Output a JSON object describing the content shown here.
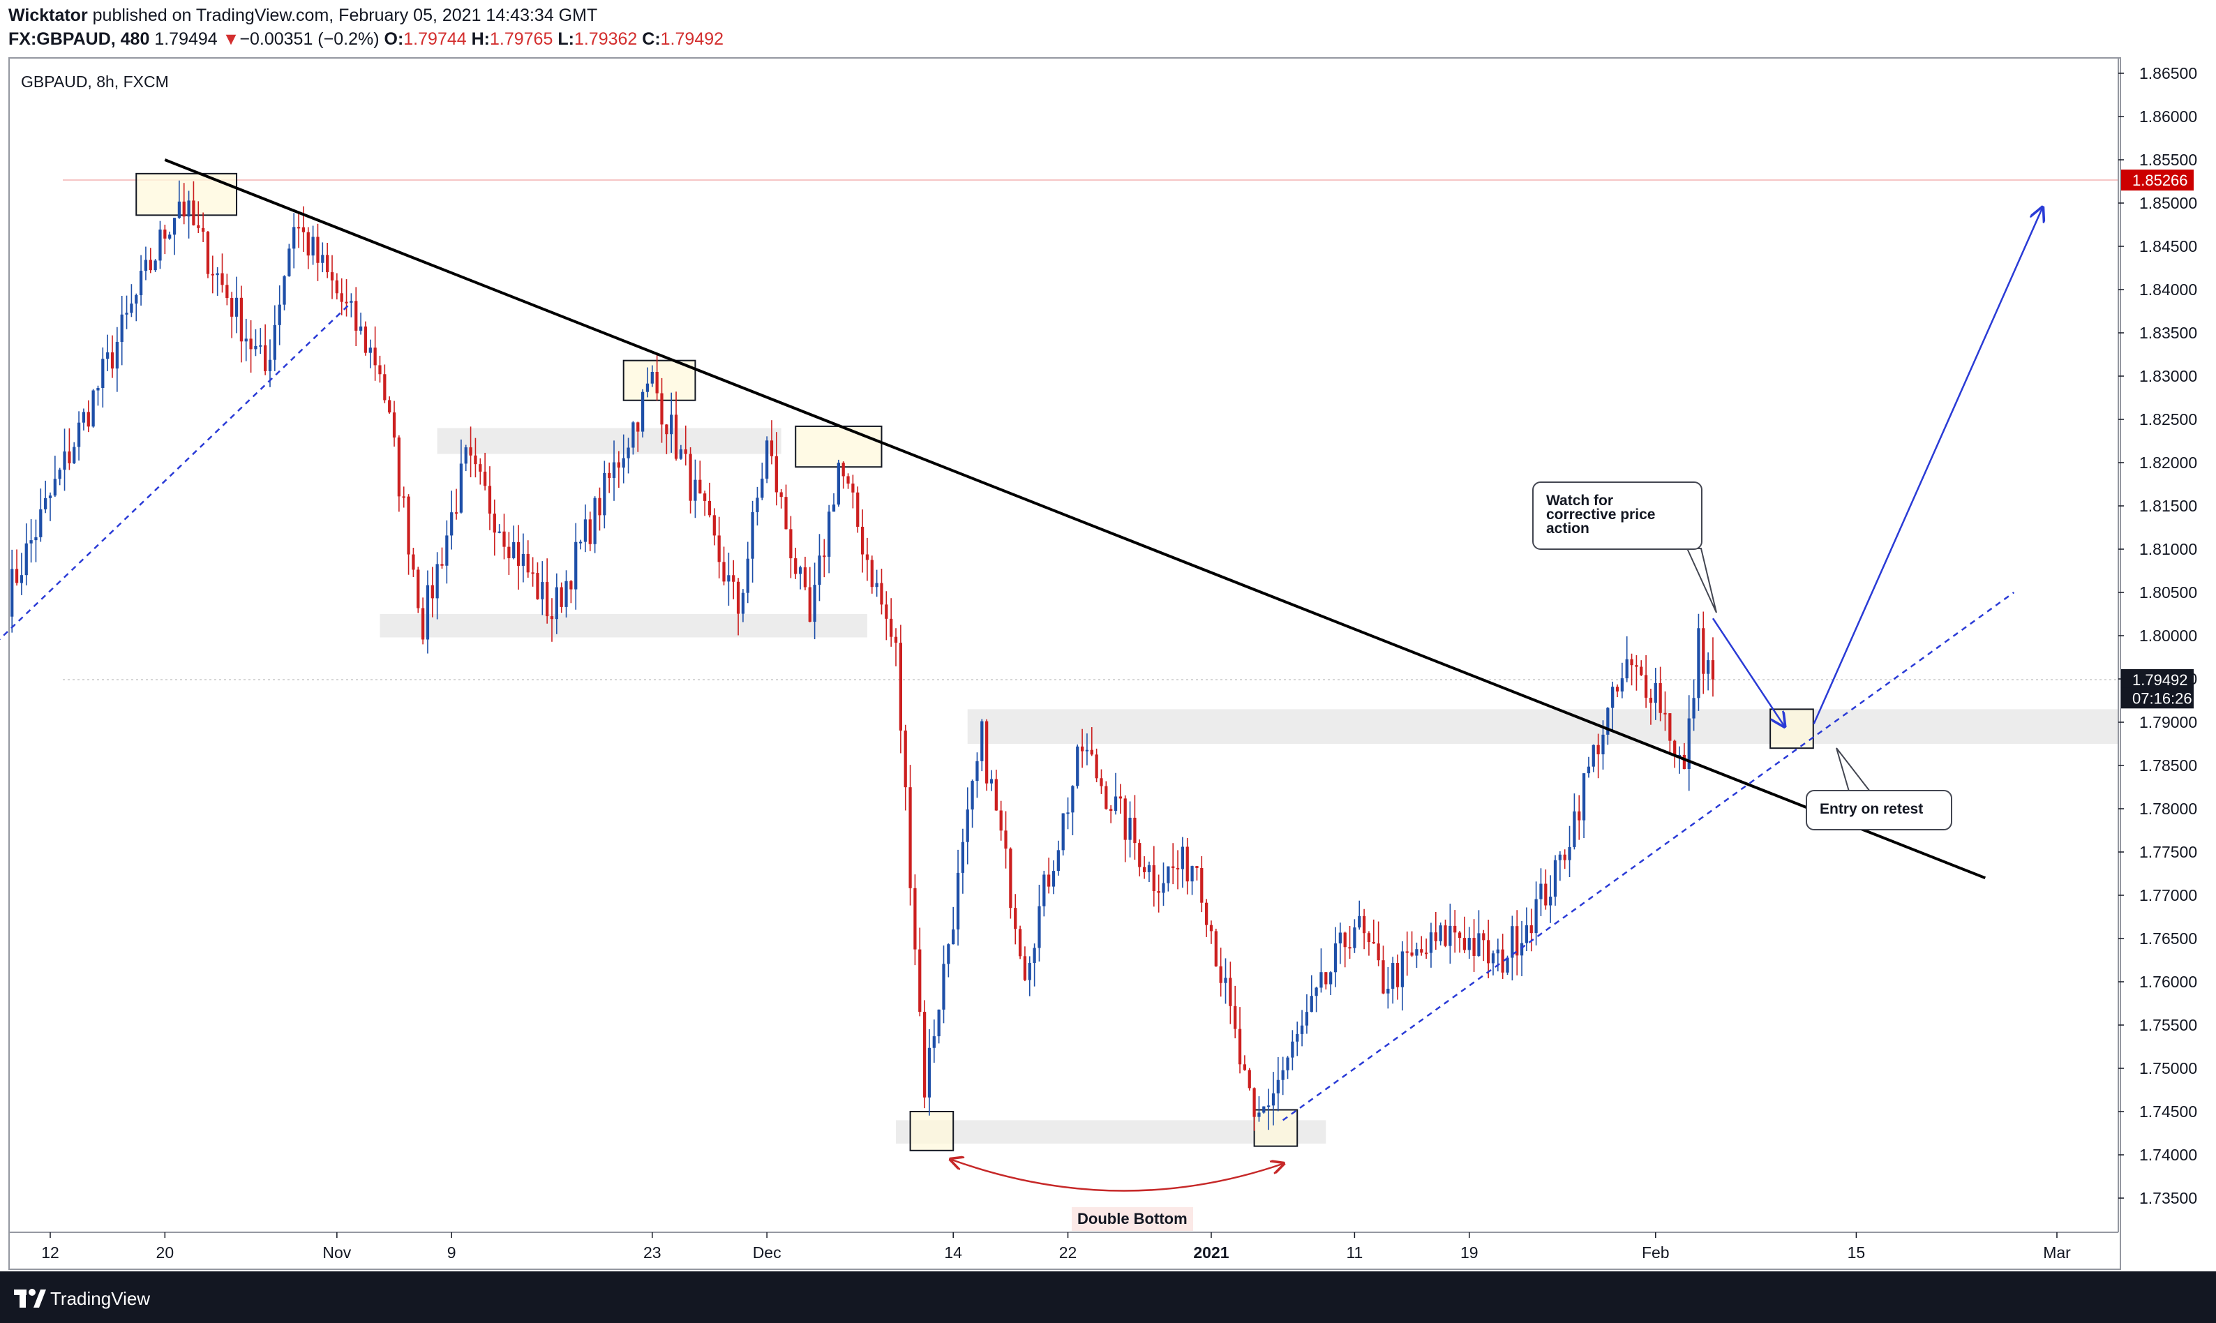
{
  "header": {
    "author": "Wicktator",
    "published_text": "published on TradingView.com, February 05, 2021 14:43:34 GMT",
    "symbol_res": "FX:GBPAUD, 480",
    "last_price": "1.79494",
    "change_arrow": "▼",
    "change": "−0.00351 (−0.2%)",
    "o_label": "O:",
    "o_value": "1.79744",
    "h_label": "H:",
    "h_value": "1.79765",
    "l_label": "L:",
    "l_value": "1.79362",
    "c_label": "C:",
    "c_value": "1.79492"
  },
  "chart_label": "GBPAUD, 8h, FXCM",
  "annotations": {
    "watch": [
      "Watch for",
      "corrective price",
      "action"
    ],
    "entry": "Entry on retest",
    "double_bottom": "Double Bottom"
  },
  "footer": {
    "brand": "TradingView"
  },
  "colors": {
    "up_candle": "#1e4fa8",
    "down_candle": "#cc1f1f",
    "zone_grey": "#dcdcdc",
    "highlight_box": "#fff8dc",
    "projection_arrow": "#2a3bd6",
    "price_marker_red": "#cc0000",
    "price_marker_dark": "#131722"
  },
  "chart_data": {
    "type": "candlestick",
    "title": "GBPAUD, 8h, FXCM",
    "timeframe": "8h",
    "y_range": [
      1.7325,
      1.8665
    ],
    "y_ticks": [
      "1.86500",
      "1.86000",
      "1.85500",
      "1.85000",
      "1.84500",
      "1.84000",
      "1.83500",
      "1.83000",
      "1.82500",
      "1.82000",
      "1.81500",
      "1.81000",
      "1.80500",
      "1.80000",
      "1.79500",
      "1.79000",
      "1.78500",
      "1.78000",
      "1.77500",
      "1.77000",
      "1.76500",
      "1.76000",
      "1.75500",
      "1.75000",
      "1.74500",
      "1.74000",
      "1.73500"
    ],
    "x_ticks": [
      {
        "label": "12",
        "date": "2020-10-12",
        "bold": false
      },
      {
        "label": "20",
        "date": "2020-10-20",
        "bold": false
      },
      {
        "label": "Nov",
        "date": "2020-11-01",
        "bold": false
      },
      {
        "label": "9",
        "date": "2020-11-09",
        "bold": false
      },
      {
        "label": "23",
        "date": "2020-11-23",
        "bold": false
      },
      {
        "label": "Dec",
        "date": "2020-12-01",
        "bold": false
      },
      {
        "label": "14",
        "date": "2020-12-14",
        "bold": false
      },
      {
        "label": "22",
        "date": "2020-12-22",
        "bold": false
      },
      {
        "label": "2021",
        "date": "2021-01-01",
        "bold": true
      },
      {
        "label": "11",
        "date": "2021-01-11",
        "bold": false
      },
      {
        "label": "19",
        "date": "2021-01-19",
        "bold": false
      },
      {
        "label": "Feb",
        "date": "2021-02-01",
        "bold": false
      },
      {
        "label": "15",
        "date": "2021-02-15",
        "bold": false
      },
      {
        "label": "Mar",
        "date": "2021-03-01",
        "bold": false
      }
    ],
    "price_markers": [
      {
        "label": "1.85266",
        "value": 1.85266,
        "style": "red",
        "line": true
      },
      {
        "label": "1.79492",
        "value": 1.79492,
        "style": "dark",
        "line": true
      },
      {
        "label": "07:16:26",
        "value": 1.7928,
        "style": "dark",
        "line": false
      }
    ],
    "anchors": [
      {
        "date": "2020-10-09",
        "price": 1.8045
      },
      {
        "date": "2020-10-21",
        "price": 1.8505
      },
      {
        "date": "2020-10-27",
        "price": 1.8305
      },
      {
        "date": "2020-10-29",
        "price": 1.848
      },
      {
        "date": "2020-11-04",
        "price": 1.831
      },
      {
        "date": "2020-11-07",
        "price": 1.8015
      },
      {
        "date": "2020-11-10",
        "price": 1.82
      },
      {
        "date": "2020-11-16",
        "price": 1.8025
      },
      {
        "date": "2020-11-23",
        "price": 1.8295
      },
      {
        "date": "2020-11-29",
        "price": 1.803
      },
      {
        "date": "2020-12-01",
        "price": 1.822
      },
      {
        "date": "2020-12-04",
        "price": 1.801
      },
      {
        "date": "2020-12-06",
        "price": 1.82
      },
      {
        "date": "2020-12-10",
        "price": 1.798
      },
      {
        "date": "2020-12-12",
        "price": 1.748
      },
      {
        "date": "2020-12-16",
        "price": 1.788
      },
      {
        "date": "2020-12-19",
        "price": 1.762
      },
      {
        "date": "2020-12-23",
        "price": 1.787
      },
      {
        "date": "2020-12-28",
        "price": 1.772
      },
      {
        "date": "2020-12-31",
        "price": 1.774
      },
      {
        "date": "2021-01-04",
        "price": 1.743
      },
      {
        "date": "2021-01-09",
        "price": 1.76
      },
      {
        "date": "2021-01-11",
        "price": 1.767
      },
      {
        "date": "2021-01-13",
        "price": 1.76
      },
      {
        "date": "2021-01-18",
        "price": 1.766
      },
      {
        "date": "2021-01-21",
        "price": 1.762
      },
      {
        "date": "2021-01-25",
        "price": 1.772
      },
      {
        "date": "2021-01-28",
        "price": 1.788
      },
      {
        "date": "2021-01-30",
        "price": 1.796
      },
      {
        "date": "2021-02-01",
        "price": 1.794
      },
      {
        "date": "2021-02-03",
        "price": 1.784
      },
      {
        "date": "2021-02-04",
        "price": 1.799
      },
      {
        "date": "2021-02-05",
        "price": 1.79494
      }
    ],
    "lines": {
      "downtrend": [
        {
          "date": "2020-10-20",
          "price": 1.855
        },
        {
          "date": "2021-02-24",
          "price": 1.772
        }
      ],
      "uptrend_left": [
        {
          "date": "2020-10-04",
          "price": 1.7925
        },
        {
          "date": "2020-11-02",
          "price": 1.8385
        }
      ],
      "uptrend_right": [
        {
          "date": "2021-01-06",
          "price": 1.744
        },
        {
          "date": "2021-02-26",
          "price": 1.805
        }
      ]
    },
    "zones": [
      {
        "from": "2020-11-08",
        "to": "2020-12-02",
        "low": 1.821,
        "high": 1.824
      },
      {
        "from": "2020-11-04",
        "to": "2020-12-08",
        "low": 1.7998,
        "high": 1.8025
      },
      {
        "from": "2020-12-10",
        "to": "2021-01-09",
        "low": 1.7413,
        "high": 1.744
      },
      {
        "from": "2020-12-15",
        "to": "2021-03-07",
        "low": 1.7875,
        "high": 1.7915
      }
    ],
    "highlight_boxes": [
      {
        "from": "2020-10-18",
        "to": "2020-10-25",
        "low": 1.8486,
        "high": 1.8534
      },
      {
        "from": "2020-11-21",
        "to": "2020-11-26",
        "low": 1.8272,
        "high": 1.8318
      },
      {
        "from": "2020-12-03",
        "to": "2020-12-09",
        "low": 1.8195,
        "high": 1.8242
      },
      {
        "from": "2020-12-11",
        "to": "2020-12-14",
        "low": 1.7405,
        "high": 1.745
      },
      {
        "from": "2021-01-04",
        "to": "2021-01-07",
        "low": 1.741,
        "high": 1.7452
      },
      {
        "from": "2021-02-09",
        "to": "2021-02-12",
        "low": 1.787,
        "high": 1.7915
      }
    ],
    "projection": [
      {
        "date": "2021-02-05",
        "price": 1.802
      },
      {
        "date": "2021-02-10",
        "price": 1.7895
      },
      {
        "date": "2021-02-28",
        "price": 1.8495
      }
    ]
  }
}
